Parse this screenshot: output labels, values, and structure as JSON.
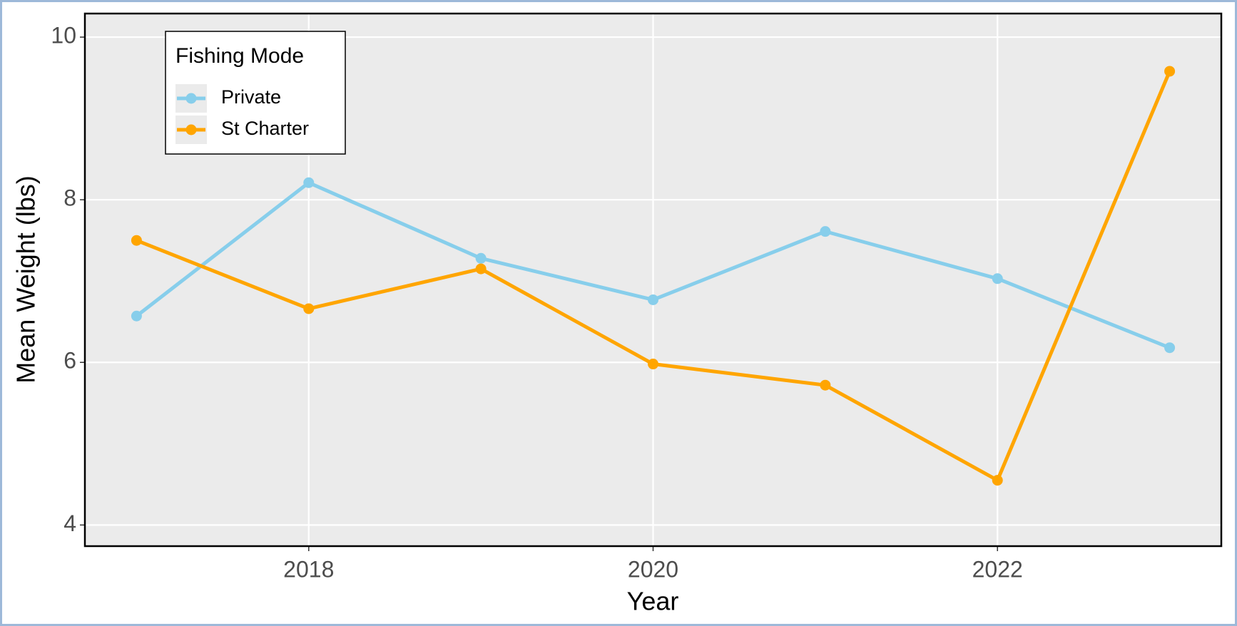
{
  "chart_data": {
    "type": "line",
    "x_label": "Year",
    "y_label": "Mean Weight (lbs)",
    "legend_title": "Fishing Mode",
    "x": [
      2017,
      2018,
      2019,
      2020,
      2021,
      2022,
      2023
    ],
    "series": [
      {
        "name": "Private",
        "color": "#87ceeb",
        "values": [
          6.57,
          8.21,
          7.28,
          6.77,
          7.61,
          7.03,
          6.18
        ]
      },
      {
        "name": "St Charter",
        "color": "#ffa500",
        "values": [
          7.5,
          6.66,
          7.15,
          5.98,
          5.72,
          4.55,
          9.58
        ]
      }
    ],
    "xlim": [
      2016.7,
      2023.3
    ],
    "xticks": [
      2018,
      2020,
      2022
    ],
    "ylim": [
      3.74,
      10.29
    ],
    "yticks": [
      4,
      6,
      8,
      10
    ],
    "grid": true,
    "legend_position": "top-left"
  }
}
